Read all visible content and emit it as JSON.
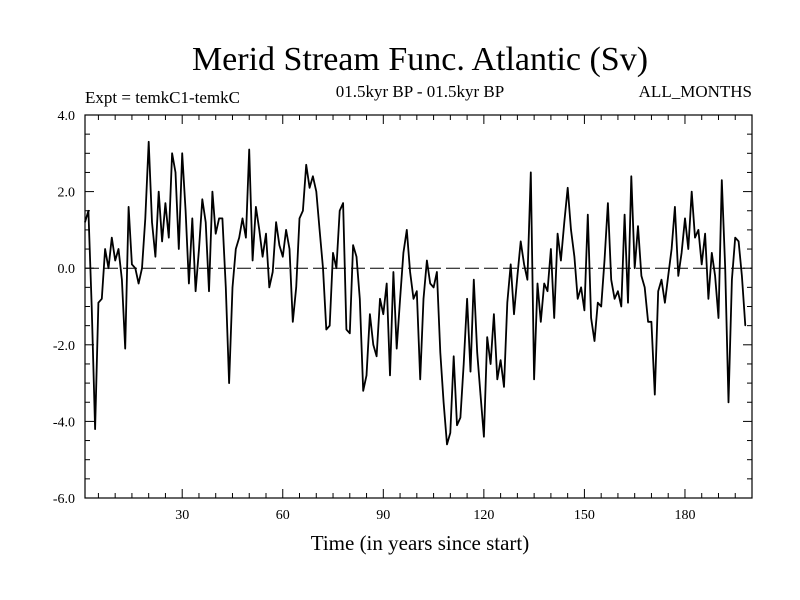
{
  "chart_data": {
    "type": "line",
    "title": "Merid Stream Func. Atlantic (Sv)",
    "subtitle_left": "Expt = temkC1-temkC",
    "subtitle_center": "01.5kyr BP - 01.5kyr BP",
    "subtitle_right": "ALL_MONTHS",
    "xlabel": "Time (in years since start)",
    "ylabel": "",
    "xlim": [
      1,
      200
    ],
    "ylim": [
      -6.0,
      4.0
    ],
    "x_ticks": [
      30,
      60,
      90,
      120,
      150,
      180
    ],
    "y_ticks": [
      4.0,
      2.0,
      0.0,
      -2.0,
      -4.0,
      -6.0
    ],
    "y_tick_labels": [
      "4.0",
      "2.0",
      "0.0",
      "-2.0",
      "-4.0",
      "-6.0"
    ],
    "reference_line": 0.0,
    "series": [
      {
        "name": "Merid Stream Func. Atlantic",
        "x_start": 1,
        "x_step": 1,
        "values": [
          1.2,
          1.5,
          -1.0,
          -4.2,
          -0.9,
          -0.8,
          0.5,
          0.0,
          0.8,
          0.2,
          0.5,
          -0.3,
          -2.1,
          1.6,
          0.1,
          0.0,
          -0.4,
          0.0,
          1.3,
          3.3,
          1.2,
          0.3,
          2.0,
          0.7,
          1.7,
          0.8,
          3.0,
          2.5,
          0.5,
          3.0,
          1.5,
          -0.4,
          1.3,
          -0.6,
          0.5,
          1.8,
          1.2,
          -0.6,
          2.0,
          0.9,
          1.3,
          1.3,
          -0.5,
          -3.0,
          -0.5,
          0.5,
          0.8,
          1.3,
          0.8,
          3.1,
          0.2,
          1.6,
          1.0,
          0.3,
          0.9,
          -0.5,
          -0.1,
          1.2,
          0.6,
          0.3,
          1.0,
          0.5,
          -1.4,
          -0.5,
          1.3,
          1.5,
          2.7,
          2.1,
          2.4,
          2.0,
          1.0,
          0.0,
          -1.6,
          -1.5,
          0.4,
          0.0,
          1.5,
          1.7,
          -1.6,
          -1.7,
          0.6,
          0.3,
          -0.8,
          -3.2,
          -2.8,
          -1.2,
          -2.0,
          -2.3,
          -0.8,
          -1.2,
          -0.4,
          -2.8,
          -0.1,
          -2.1,
          -0.8,
          0.4,
          1.0,
          -0.1,
          -0.8,
          -0.6,
          -2.9,
          -0.8,
          0.2,
          -0.4,
          -0.5,
          -0.1,
          -2.2,
          -3.5,
          -4.6,
          -4.3,
          -2.3,
          -4.1,
          -3.9,
          -2.5,
          -0.8,
          -2.7,
          -0.3,
          -2.2,
          -3.3,
          -4.4,
          -1.8,
          -2.5,
          -1.2,
          -2.9,
          -2.4,
          -3.1,
          -0.9,
          0.1,
          -1.2,
          -0.2,
          0.7,
          0.1,
          -0.3,
          2.5,
          -2.9,
          -0.4,
          -1.4,
          -0.4,
          -0.6,
          0.5,
          -1.3,
          0.9,
          0.2,
          1.2,
          2.1,
          1.0,
          0.3,
          -0.8,
          -0.5,
          -1.1,
          1.4,
          -1.3,
          -1.9,
          -0.9,
          -1.0,
          0.2,
          1.7,
          -0.3,
          -0.8,
          -0.6,
          -1.0,
          1.4,
          -0.9,
          2.4,
          0.0,
          1.1,
          -0.2,
          -0.5,
          -1.4,
          -1.4,
          -3.3,
          -0.6,
          -0.3,
          -0.9,
          -0.2,
          0.5,
          1.6,
          -0.2,
          0.4,
          1.3,
          0.5,
          2.0,
          0.8,
          1.0,
          0.1,
          0.9,
          -0.8,
          0.4,
          -0.2,
          -1.3,
          2.3,
          0.0,
          -3.5,
          -0.3,
          0.8,
          0.7,
          -0.2,
          -1.5
        ]
      }
    ],
    "series_color": "#000000"
  }
}
